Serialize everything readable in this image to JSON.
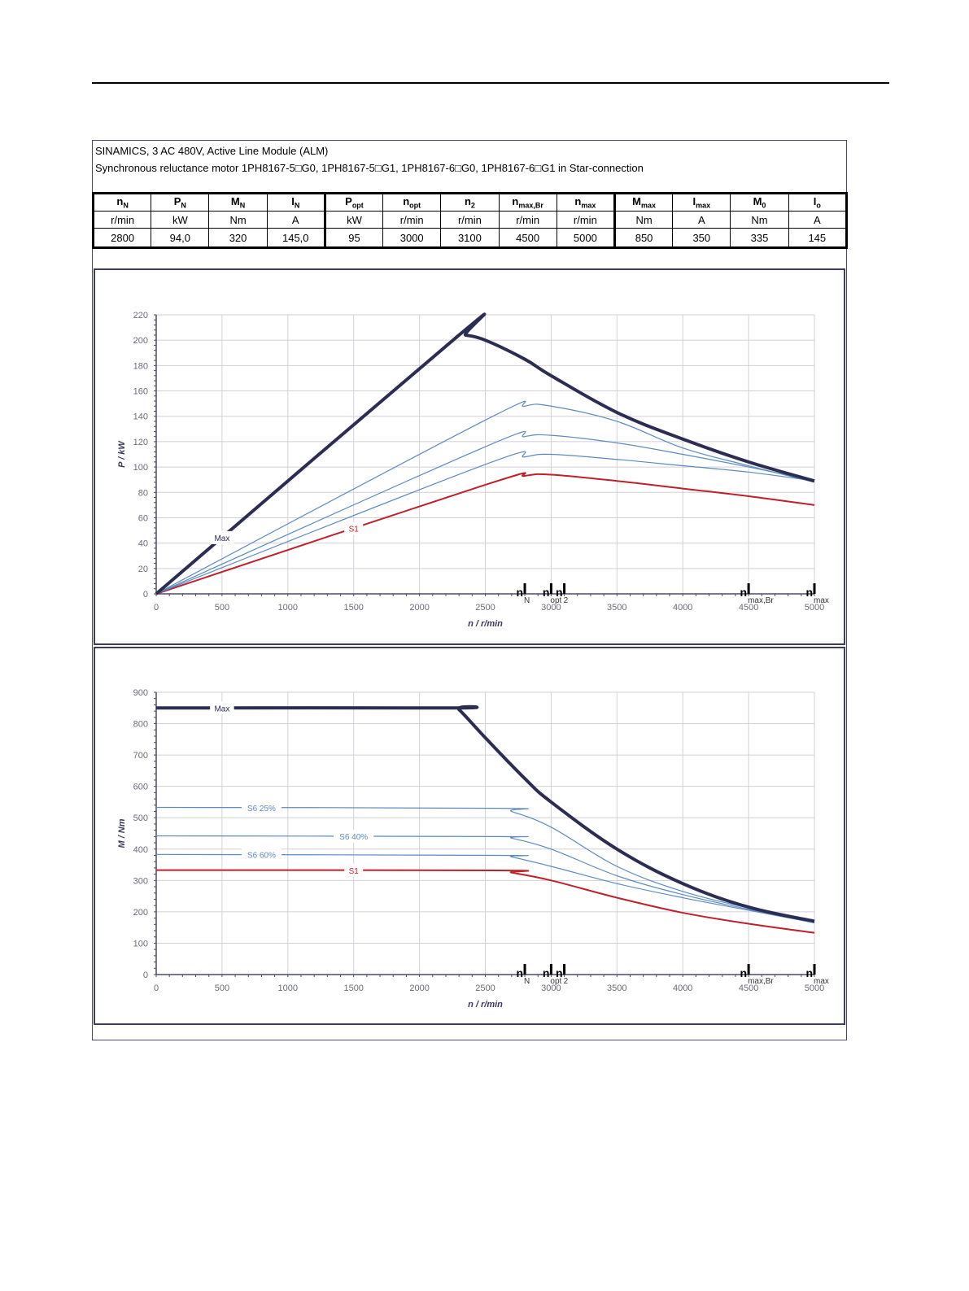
{
  "header": {
    "line1": "SINAMICS, 3 AC 480V, Active Line Module (ALM)",
    "line2": "Synchronous reluctance motor  1PH8167-5□G0,  1PH8167-5□G1,  1PH8167-6□G0,  1PH8167-6□G1   in Star-connection"
  },
  "spec_table": {
    "columns": [
      {
        "sym": "n",
        "sub": "N",
        "unit": "r/min",
        "value": "2800"
      },
      {
        "sym": "P",
        "sub": "N",
        "unit": "kW",
        "value": "94,0"
      },
      {
        "sym": "M",
        "sub": "N",
        "unit": "Nm",
        "value": "320"
      },
      {
        "sym": "I",
        "sub": "N",
        "unit": "A",
        "value": "145,0"
      },
      {
        "sym": "P",
        "sub": "opt",
        "unit": "kW",
        "value": "95"
      },
      {
        "sym": "n",
        "sub": "opt",
        "unit": "r/min",
        "value": "3000"
      },
      {
        "sym": "n",
        "sub": "2",
        "unit": "r/min",
        "value": "3100"
      },
      {
        "sym": "n",
        "sub": "max,Br",
        "unit": "r/min",
        "value": "4500"
      },
      {
        "sym": "n",
        "sub": "max",
        "unit": "r/min",
        "value": "5000"
      },
      {
        "sym": "M",
        "sub": "max",
        "unit": "Nm",
        "value": "850"
      },
      {
        "sym": "I",
        "sub": "max",
        "unit": "A",
        "value": "350"
      },
      {
        "sym": "M",
        "sub": "0",
        "unit": "Nm",
        "value": "335"
      },
      {
        "sym": "I",
        "sub": "o",
        "unit": "A",
        "value": "145"
      }
    ]
  },
  "colors": {
    "max": "#2b2d52",
    "s6": "#5b8ac0",
    "s1": "#c0202a",
    "grid": "#d0d0d8",
    "axis": "#4a4a6a",
    "frame": "#3d3d5c"
  },
  "chart_data": [
    {
      "type": "line",
      "title": "",
      "xlabel": "n / r/min",
      "ylabel": "P / kW",
      "xlim": [
        0,
        5000
      ],
      "ylim": [
        0,
        220
      ],
      "xticks": [
        "0",
        "500",
        "1000",
        "1500",
        "2000",
        "2500",
        "3000",
        "3500",
        "4000",
        "4500",
        "5000"
      ],
      "yticks": [
        "0",
        "20",
        "40",
        "60",
        "80",
        "100",
        "120",
        "140",
        "160",
        "180",
        "200",
        "220"
      ],
      "grid": true,
      "series": [
        {
          "name": "Max",
          "label": "Max",
          "style": "max",
          "x": [
            0,
            2300,
            2350,
            2500,
            2800,
            3000,
            3500,
            4000,
            4500,
            5000
          ],
          "y": [
            0,
            204,
            204,
            200,
            185,
            172,
            143,
            122,
            104,
            89
          ]
        },
        {
          "name": "S6 25%",
          "label": "",
          "style": "s6",
          "x": [
            0,
            2500,
            2800,
            3000,
            3500,
            4000,
            4500,
            5000
          ],
          "y": [
            0,
            137,
            148,
            148,
            136,
            115,
            101,
            88
          ]
        },
        {
          "name": "S6 40%",
          "label": "",
          "style": "s6",
          "x": [
            0,
            2500,
            2800,
            3000,
            3500,
            4000,
            4500,
            5000
          ],
          "y": [
            0,
            116,
            124,
            125,
            119,
            110,
            100,
            89
          ]
        },
        {
          "name": "S6 60%",
          "label": "",
          "style": "s6",
          "x": [
            0,
            2500,
            2800,
            3000,
            3500,
            4000,
            4500,
            5000
          ],
          "y": [
            0,
            102,
            108,
            110,
            106,
            101,
            96,
            89
          ]
        },
        {
          "name": "S1",
          "label": "S1",
          "style": "s1",
          "x": [
            0,
            2500,
            2800,
            3000,
            3500,
            4000,
            4500,
            5000
          ],
          "y": [
            0,
            86,
            93,
            94,
            89,
            83,
            77,
            70
          ]
        }
      ],
      "labels": [
        {
          "text": "Max",
          "series": 0,
          "at_x": 500
        },
        {
          "text": "S1",
          "series": 4,
          "at_x": 1500
        }
      ],
      "speed_markers": [
        {
          "n": "n",
          "sub": "N",
          "x": 2800
        },
        {
          "n": "n",
          "sub": "opt",
          "x": 3000
        },
        {
          "n": "n",
          "sub": "2",
          "x": 3100
        },
        {
          "n": "n",
          "sub": "max,Br",
          "x": 4500
        },
        {
          "n": "n",
          "sub": "max",
          "x": 5000
        }
      ]
    },
    {
      "type": "line",
      "title": "",
      "xlabel": "n / r/min",
      "ylabel": "M / Nm",
      "xlim": [
        0,
        5000
      ],
      "ylim": [
        0,
        900
      ],
      "xticks": [
        "0",
        "500",
        "1000",
        "1500",
        "2000",
        "2500",
        "3000",
        "3500",
        "4000",
        "4500",
        "5000"
      ],
      "yticks": [
        "0",
        "100",
        "200",
        "300",
        "400",
        "500",
        "600",
        "700",
        "800",
        "900"
      ],
      "grid": true,
      "series": [
        {
          "name": "Max",
          "label": "Max",
          "style": "max",
          "x": [
            0,
            2250,
            2300,
            2500,
            2800,
            3000,
            3500,
            4000,
            4500,
            5000
          ],
          "y": [
            850,
            850,
            845,
            755,
            625,
            550,
            400,
            290,
            215,
            170
          ]
        },
        {
          "name": "S6 25%",
          "label": "S6 25%",
          "style": "s6",
          "x": [
            0,
            2600,
            2700,
            3000,
            3500,
            4000,
            4500,
            5000
          ],
          "y": [
            533,
            530,
            520,
            470,
            345,
            265,
            212,
            165
          ]
        },
        {
          "name": "S6 40%",
          "label": "S6 40%",
          "style": "s6",
          "x": [
            0,
            2600,
            2700,
            3000,
            3500,
            4000,
            4500,
            5000
          ],
          "y": [
            442,
            440,
            435,
            400,
            315,
            255,
            208,
            165
          ]
        },
        {
          "name": "S6 60%",
          "label": "S6 60%",
          "style": "s6",
          "x": [
            0,
            2600,
            2700,
            3000,
            3500,
            4000,
            4500,
            5000
          ],
          "y": [
            383,
            380,
            375,
            345,
            290,
            245,
            205,
            165
          ]
        },
        {
          "name": "S1",
          "label": "S1",
          "style": "s1",
          "x": [
            0,
            2600,
            2700,
            3000,
            3500,
            4000,
            4500,
            5000
          ],
          "y": [
            333,
            332,
            325,
            300,
            245,
            197,
            162,
            133
          ]
        }
      ],
      "labels": [
        {
          "text": "Max",
          "series": 0,
          "at_x": 500
        },
        {
          "text": "S6 25%",
          "series": 1,
          "at_x": 800
        },
        {
          "text": "S6 40%",
          "series": 2,
          "at_x": 1500
        },
        {
          "text": "S6 60%",
          "series": 3,
          "at_x": 800
        },
        {
          "text": "S1",
          "series": 4,
          "at_x": 1500
        }
      ],
      "speed_markers": [
        {
          "n": "n",
          "sub": "N",
          "x": 2800
        },
        {
          "n": "n",
          "sub": "opt",
          "x": 3000
        },
        {
          "n": "n",
          "sub": "2",
          "x": 3100
        },
        {
          "n": "n",
          "sub": "max,Br",
          "x": 4500
        },
        {
          "n": "n",
          "sub": "max",
          "x": 5000
        }
      ]
    }
  ]
}
